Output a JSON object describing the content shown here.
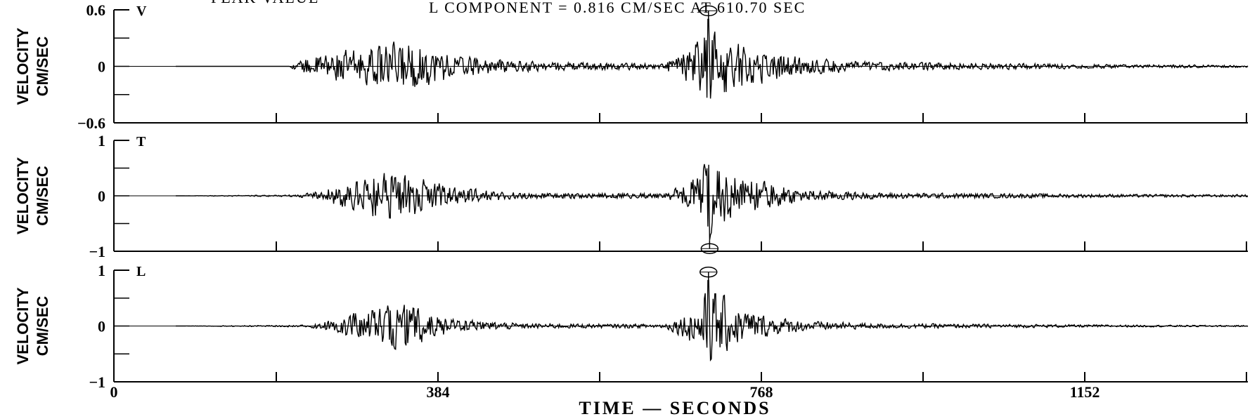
{
  "header": {
    "left": "PEAK VALUE",
    "line1": "L  COMPONENT  =  0.816      CM/SEC  AT  610.70   SEC"
  },
  "chart_data": [
    {
      "type": "line",
      "component": "V",
      "ylabel": [
        "VELOCITY",
        "CM/SEC"
      ],
      "ylim": [
        -0.6,
        0.6
      ],
      "yticks": [
        "0.6",
        "0",
        "−0.6"
      ],
      "xlim": [
        0,
        1300
      ],
      "peak": {
        "x": 610.7,
        "y": 0.5,
        "marker": "top"
      },
      "envelope": [
        [
          0,
          0
        ],
        [
          130,
          0
        ],
        [
          140,
          0.06
        ],
        [
          160,
          0.12
        ],
        [
          190,
          0.18
        ],
        [
          230,
          0.22
        ],
        [
          260,
          0.3
        ],
        [
          280,
          0.26
        ],
        [
          300,
          0.2
        ],
        [
          330,
          0.12
        ],
        [
          370,
          0.08
        ],
        [
          430,
          0.05
        ],
        [
          520,
          0.04
        ],
        [
          560,
          0.03
        ],
        [
          570,
          0.12
        ],
        [
          590,
          0.2
        ],
        [
          610,
          0.5
        ],
        [
          640,
          0.28
        ],
        [
          680,
          0.18
        ],
        [
          720,
          0.1
        ],
        [
          800,
          0.05
        ],
        [
          900,
          0.04
        ],
        [
          1000,
          0.03
        ],
        [
          1100,
          0.02
        ],
        [
          1290,
          0.01
        ]
      ]
    },
    {
      "type": "line",
      "component": "T",
      "ylabel": [
        "VELOCITY",
        "CM/SEC"
      ],
      "ylim": [
        -1,
        1
      ],
      "yticks": [
        "1",
        "0",
        "−1"
      ],
      "xlim": [
        0,
        1300
      ],
      "peak": {
        "x": 612,
        "y": -0.8,
        "marker": "bottom"
      },
      "envelope": [
        [
          0,
          0
        ],
        [
          140,
          0.02
        ],
        [
          170,
          0.12
        ],
        [
          200,
          0.3
        ],
        [
          230,
          0.5
        ],
        [
          260,
          0.45
        ],
        [
          290,
          0.3
        ],
        [
          330,
          0.15
        ],
        [
          400,
          0.06
        ],
        [
          480,
          0.05
        ],
        [
          560,
          0.05
        ],
        [
          580,
          0.2
        ],
        [
          600,
          0.45
        ],
        [
          612,
          0.8
        ],
        [
          640,
          0.45
        ],
        [
          680,
          0.25
        ],
        [
          720,
          0.12
        ],
        [
          800,
          0.06
        ],
        [
          900,
          0.05
        ],
        [
          1000,
          0.04
        ],
        [
          1100,
          0.03
        ],
        [
          1290,
          0.02
        ]
      ]
    },
    {
      "type": "line",
      "component": "L",
      "ylabel": [
        "VELOCITY",
        "CM/SEC"
      ],
      "ylim": [
        -1,
        1
      ],
      "yticks": [
        "1",
        "0",
        "−1"
      ],
      "xlim": [
        0,
        1300
      ],
      "xticks": [
        0,
        384,
        768,
        1152
      ],
      "xlabel": "TIME  —  SECONDS",
      "peak": {
        "x": 610.7,
        "y": 0.816,
        "marker": "top"
      },
      "envelope": [
        [
          0,
          0
        ],
        [
          150,
          0.02
        ],
        [
          180,
          0.12
        ],
        [
          210,
          0.3
        ],
        [
          240,
          0.4
        ],
        [
          260,
          0.5
        ],
        [
          290,
          0.25
        ],
        [
          330,
          0.12
        ],
        [
          400,
          0.05
        ],
        [
          500,
          0.04
        ],
        [
          560,
          0.04
        ],
        [
          580,
          0.2
        ],
        [
          600,
          0.45
        ],
        [
          611,
          0.816
        ],
        [
          640,
          0.4
        ],
        [
          680,
          0.2
        ],
        [
          720,
          0.1
        ],
        [
          800,
          0.05
        ],
        [
          900,
          0.04
        ],
        [
          1000,
          0.03
        ],
        [
          1100,
          0.02
        ],
        [
          1290,
          0.01
        ]
      ]
    }
  ]
}
